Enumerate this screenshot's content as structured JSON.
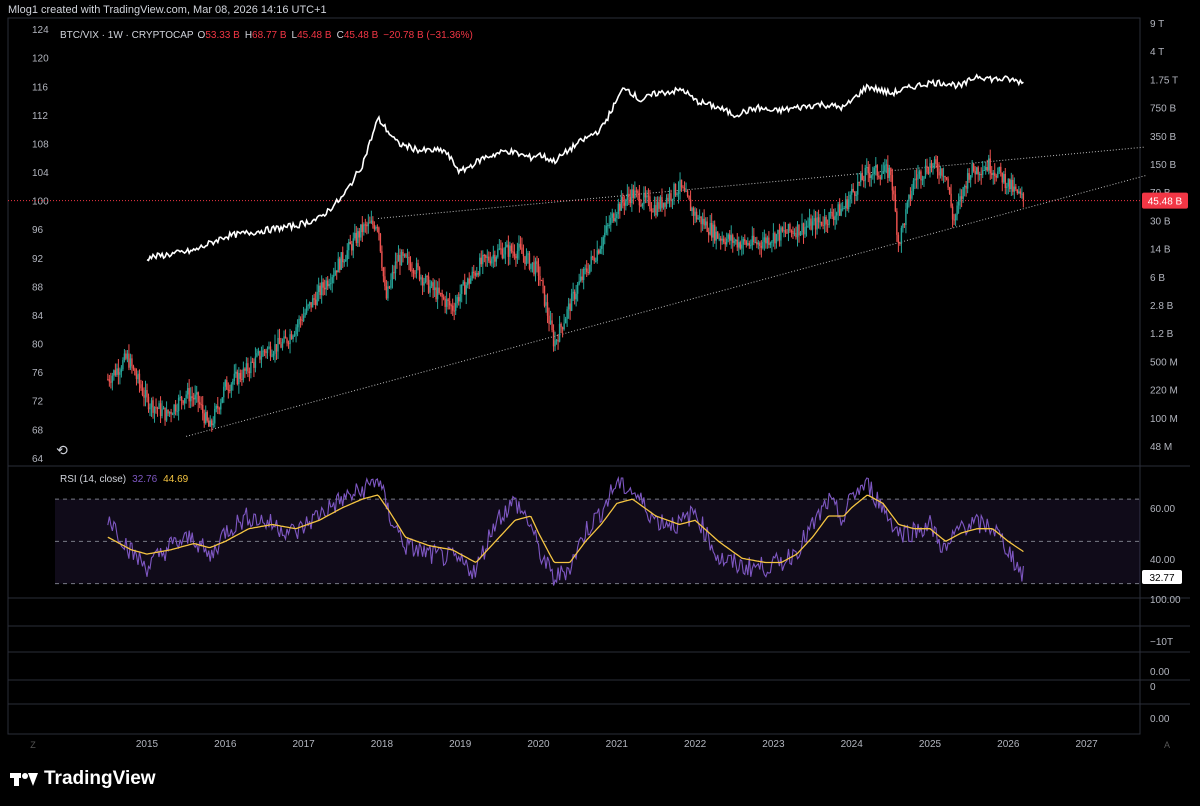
{
  "header": {
    "text": "Mlog1 created with TradingView.com, Mar 08, 2026 14:16 UTC+1"
  },
  "brand": {
    "name": "TradingView"
  },
  "colors": {
    "bg": "#000000",
    "up": "#26a69a",
    "down": "#ef5350",
    "btc": "#ffffff",
    "rsi": "#7e57c2",
    "rsi_ma": "#f5c542",
    "last": "#f23645",
    "trend": "#bbbbbb"
  },
  "chart_data": {
    "type": "line",
    "legend": {
      "symbol": "BTC/VIX · 1W · CRYPTOCAP",
      "o_label": "O",
      "o": "53.33 B",
      "h_label": "H",
      "h": "68.77 B",
      "l_label": "L",
      "l": "45.48 B",
      "c_label": "C",
      "c": "45.48 B",
      "change": "−20.78 B (−31.36%)"
    },
    "x_ticks": [
      "2015",
      "2016",
      "2017",
      "2018",
      "2019",
      "2020",
      "2021",
      "2022",
      "2023",
      "2024",
      "2025",
      "2026",
      "2027"
    ],
    "left_axis": {
      "ticks": [
        124,
        120,
        116,
        112,
        108,
        104,
        100,
        96,
        92,
        88,
        84,
        80,
        76,
        72,
        68,
        64
      ],
      "ylim": [
        63,
        125
      ]
    },
    "right_axis": {
      "ticks": [
        "9 T",
        "4 T",
        "1.75 T",
        "750 B",
        "350 B",
        "150 B",
        "70 B",
        "30 B",
        "14 B",
        "6 B",
        "2.8 B",
        "1.2 B",
        "500 M",
        "220 M",
        "100 M",
        "48 M"
      ]
    },
    "last_price_label": "45.48 B",
    "rsi_panel": {
      "label": "RSI (14, close)",
      "value": "32.76",
      "ma_value": "44.69",
      "last_label": "32.77",
      "right_ticks": [
        "60.00",
        "40.00"
      ],
      "ylim": [
        27,
        80
      ],
      "bands": [
        70,
        50,
        30
      ]
    },
    "lower_panels": {
      "ticks": [
        "100.00",
        "−10T",
        "0.00",
        "0",
        "0.00"
      ]
    },
    "series": [
      {
        "name": "BTC/VIX candles (left scale)",
        "x": [
          2014.5,
          2014.75,
          2015.0,
          2015.25,
          2015.5,
          2015.65,
          2015.8,
          2016.0,
          2016.25,
          2016.5,
          2016.75,
          2017.0,
          2017.25,
          2017.5,
          2017.75,
          2017.95,
          2018.05,
          2018.2,
          2018.4,
          2018.6,
          2018.9,
          2019.0,
          2019.25,
          2019.5,
          2019.75,
          2020.0,
          2020.2,
          2020.5,
          2020.75,
          2021.0,
          2021.2,
          2021.5,
          2021.8,
          2022.0,
          2022.3,
          2022.6,
          2022.8,
          2023.0,
          2023.3,
          2023.6,
          2023.9,
          2024.0,
          2024.2,
          2024.5,
          2024.6,
          2024.8,
          2025.0,
          2025.2,
          2025.3,
          2025.5,
          2025.75,
          2025.95,
          2026.1,
          2026.2
        ],
        "y": [
          75,
          78,
          72,
          70,
          73,
          72,
          68,
          74,
          76,
          79,
          80,
          84,
          88,
          92,
          96,
          97,
          86,
          92,
          91,
          88,
          85,
          87,
          91,
          93,
          93,
          90,
          80,
          88,
          93,
          99,
          101,
          99,
          102,
          98,
          95,
          94,
          94,
          95,
          96,
          97,
          99,
          101,
          104,
          104,
          94,
          103,
          105,
          104,
          97,
          104,
          105,
          103,
          101,
          100
        ]
      },
      {
        "name": "Total market cap (right scale)",
        "x": [
          2015.0,
          2015.3,
          2015.6,
          2015.8,
          2016.0,
          2016.3,
          2016.6,
          2016.9,
          2017.2,
          2017.5,
          2017.75,
          2017.95,
          2018.2,
          2018.5,
          2018.8,
          2019.0,
          2019.3,
          2019.6,
          2019.9,
          2020.0,
          2020.2,
          2020.5,
          2020.8,
          2021.0,
          2021.1,
          2021.3,
          2021.5,
          2021.85,
          2022.0,
          2022.3,
          2022.5,
          2022.8,
          2023.0,
          2023.3,
          2023.6,
          2023.9,
          2024.0,
          2024.2,
          2024.5,
          2024.8,
          2025.0,
          2025.2,
          2025.4,
          2025.6,
          2025.8,
          2026.0,
          2026.2
        ],
        "y": [
          92,
          92.5,
          93,
          94,
          95,
          95.5,
          96,
          96.5,
          97.5,
          100.5,
          105,
          111.5,
          108,
          107,
          107,
          104,
          106,
          107,
          106,
          106.5,
          105.5,
          108,
          110,
          114,
          116,
          114,
          115,
          115.5,
          114,
          113,
          112,
          113,
          112.5,
          113,
          113.5,
          113,
          114,
          116,
          115,
          116,
          116.5,
          116.5,
          116,
          117.5,
          117,
          117,
          116.5
        ]
      },
      {
        "name": "RSI (14, close)",
        "x": [
          2014.5,
          2014.8,
          2015.0,
          2015.3,
          2015.6,
          2015.8,
          2016.0,
          2016.3,
          2016.6,
          2016.9,
          2017.2,
          2017.5,
          2017.75,
          2017.95,
          2018.1,
          2018.3,
          2018.6,
          2018.9,
          2019.2,
          2019.45,
          2019.7,
          2019.9,
          2020.0,
          2020.2,
          2020.4,
          2020.6,
          2020.8,
          2021.0,
          2021.2,
          2021.5,
          2021.8,
          2022.0,
          2022.3,
          2022.6,
          2022.9,
          2023.1,
          2023.3,
          2023.5,
          2023.7,
          2023.9,
          2024.0,
          2024.2,
          2024.4,
          2024.6,
          2024.8,
          2025.0,
          2025.2,
          2025.4,
          2025.6,
          2025.8,
          2026.0,
          2026.2
        ],
        "y": [
          62,
          45,
          38,
          48,
          52,
          42,
          55,
          62,
          58,
          54,
          63,
          70,
          74,
          80,
          62,
          48,
          44,
          42,
          36,
          60,
          69,
          58,
          46,
          32,
          38,
          55,
          64,
          78,
          74,
          60,
          58,
          64,
          42,
          38,
          38,
          40,
          46,
          57,
          69,
          60,
          72,
          77,
          66,
          54,
          55,
          58,
          45,
          58,
          58,
          57,
          46,
          33
        ]
      },
      {
        "name": "RSI-based MA",
        "x": [
          2014.5,
          2014.8,
          2015.0,
          2015.3,
          2015.6,
          2015.8,
          2016.0,
          2016.3,
          2016.6,
          2016.9,
          2017.2,
          2017.5,
          2017.75,
          2017.95,
          2018.1,
          2018.3,
          2018.6,
          2018.9,
          2019.2,
          2019.45,
          2019.7,
          2019.9,
          2020.0,
          2020.2,
          2020.4,
          2020.6,
          2020.8,
          2021.0,
          2021.2,
          2021.5,
          2021.8,
          2022.0,
          2022.3,
          2022.6,
          2022.9,
          2023.1,
          2023.3,
          2023.5,
          2023.7,
          2023.9,
          2024.0,
          2024.2,
          2024.4,
          2024.6,
          2024.8,
          2025.0,
          2025.2,
          2025.4,
          2025.6,
          2025.8,
          2026.0,
          2026.2
        ],
        "y": [
          52,
          46,
          44,
          46,
          49,
          47,
          50,
          56,
          58,
          56,
          60,
          66,
          70,
          72,
          64,
          52,
          48,
          46,
          40,
          50,
          60,
          62,
          54,
          40,
          40,
          50,
          58,
          68,
          70,
          62,
          58,
          60,
          50,
          42,
          40,
          40,
          44,
          52,
          62,
          62,
          66,
          72,
          68,
          58,
          56,
          56,
          50,
          54,
          56,
          56,
          50,
          45
        ]
      }
    ],
    "trendlines": [
      {
        "name": "lower",
        "from": [
          2015.5,
          67
        ],
        "to": [
          2027.75,
          103.5
        ]
      },
      {
        "name": "upper",
        "from": [
          2017.95,
          97.5
        ],
        "to": [
          2027.75,
          107.5
        ]
      }
    ],
    "grid": false,
    "legend_position": "top-left"
  }
}
